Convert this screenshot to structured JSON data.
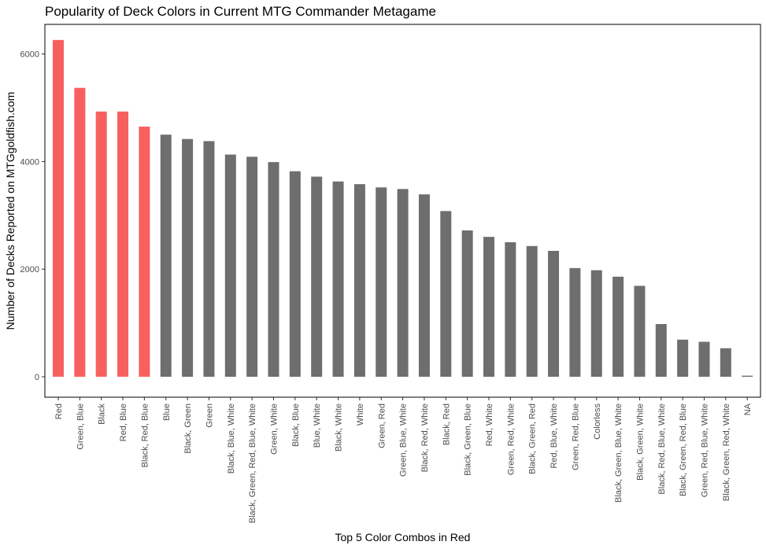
{
  "chart_data": {
    "type": "bar",
    "title": "Popularity of Deck Colors in Current MTG Commander Metagame",
    "xlabel": "Top 5 Color Combos in Red",
    "ylabel": "Number of Decks Reported on MTGgoldfish.com",
    "ylim": [
      -380,
      6550
    ],
    "yticks": [
      0,
      2000,
      4000,
      6000
    ],
    "grid": false,
    "legend": "none",
    "colors": {
      "highlight": "#F8605F",
      "default": "#6E6E6E"
    },
    "categories": [
      "Red",
      "Green, Blue",
      "Black",
      "Red, Blue",
      "Black, Red, Blue",
      "Blue",
      "Black, Green",
      "Green",
      "Black, Blue, White",
      "Black, Green, Red, Blue, White",
      "Green, White",
      "Black, Blue",
      "Blue, White",
      "Black, White",
      "White",
      "Green, Red",
      "Green, Blue, White",
      "Black, Red, White",
      "Black, Red",
      "Black, Green, Blue",
      "Red, White",
      "Green, Red, White",
      "Black, Green, Red",
      "Red, Blue, White",
      "Green, Red, Blue",
      "Colorless",
      "Black, Green, Blue, White",
      "Black, Green, White",
      "Black, Red, Blue, White",
      "Black, Green, Red, Blue",
      "Green, Red, Blue, White",
      "Black, Green, Red, White",
      "NA"
    ],
    "values": [
      6260,
      5370,
      4930,
      4930,
      4650,
      4500,
      4420,
      4380,
      4130,
      4090,
      3990,
      3820,
      3720,
      3630,
      3580,
      3520,
      3490,
      3390,
      3080,
      2720,
      2600,
      2500,
      2430,
      2340,
      2020,
      1980,
      1860,
      1690,
      980,
      690,
      650,
      530,
      20
    ],
    "highlight": [
      true,
      true,
      true,
      true,
      true,
      false,
      false,
      false,
      false,
      false,
      false,
      false,
      false,
      false,
      false,
      false,
      false,
      false,
      false,
      false,
      false,
      false,
      false,
      false,
      false,
      false,
      false,
      false,
      false,
      false,
      false,
      false,
      false
    ]
  }
}
